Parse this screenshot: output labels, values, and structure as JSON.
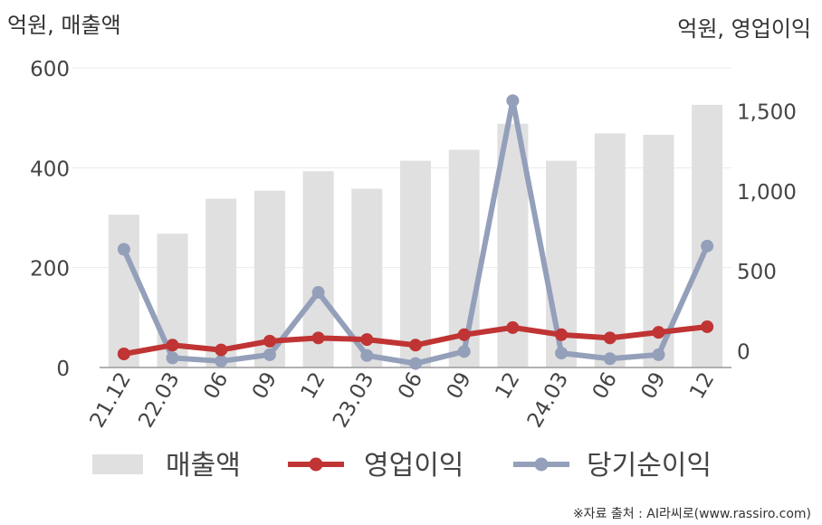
{
  "chart_data": {
    "type": "bar+line",
    "categories": [
      "21.12",
      "22.03",
      "06",
      "09",
      "12",
      "23.03",
      "06",
      "09",
      "12",
      "24.03",
      "06",
      "09",
      "12"
    ],
    "left_axis": {
      "label": "억원, 매출액",
      "range": [
        0,
        600
      ],
      "ticks": [
        "0",
        "200",
        "400",
        "600"
      ]
    },
    "right_axis": {
      "label": "억원, 영업이익",
      "range": [
        -100,
        1775
      ],
      "ticks": [
        "0",
        "500",
        "1,000",
        "1,500"
      ]
    },
    "grid": true,
    "legend_position": "bottom",
    "series": [
      {
        "name": "매출액",
        "type": "bar",
        "axis": "left",
        "color": "#e0e0e0",
        "values": [
          306,
          268,
          338,
          354,
          393,
          358,
          414,
          436,
          488,
          414,
          469,
          466,
          526
        ]
      },
      {
        "name": "영업이익",
        "type": "line",
        "axis": "right",
        "color": "#c03434",
        "values": [
          -15,
          40,
          10,
          65,
          85,
          75,
          40,
          105,
          150,
          105,
          85,
          120,
          155
        ]
      },
      {
        "name": "당기순이익",
        "type": "line",
        "axis": "right",
        "color": "#94a0ba",
        "values": [
          640,
          -40,
          -60,
          -20,
          370,
          -25,
          -75,
          0,
          1570,
          -10,
          -45,
          -20,
          660
        ]
      }
    ]
  },
  "source_note": "※자료 출처 : AI라씨로(www.rassiro.com)"
}
